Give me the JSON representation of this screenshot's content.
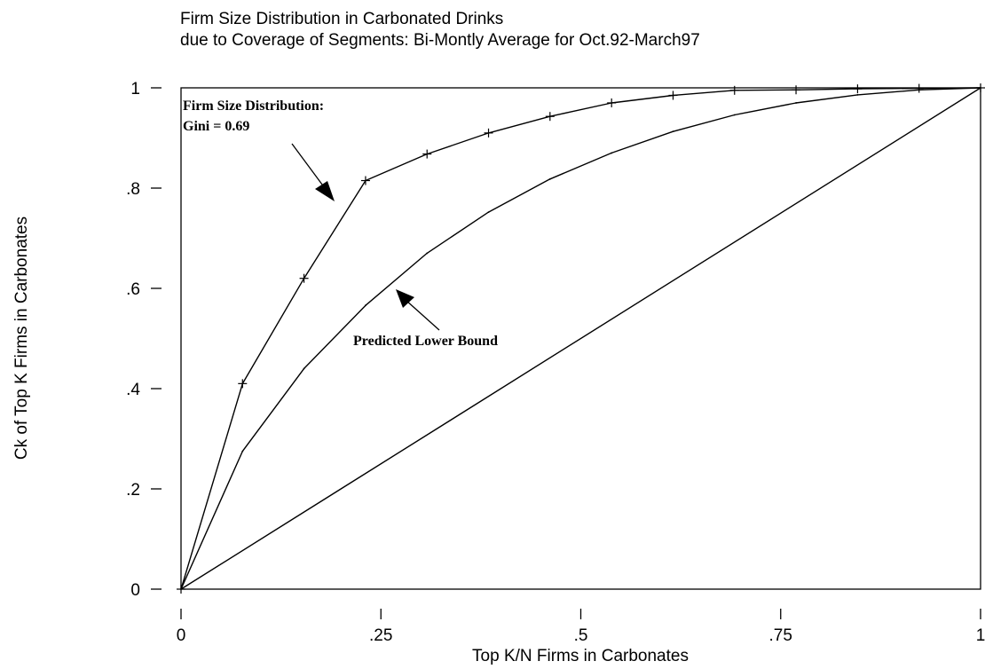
{
  "chart_data": {
    "type": "line",
    "title": "Firm Size Distribution in Carbonated Drinks",
    "subtitle": "due to Coverage of Segments: Bi-Montly Average for Oct.92-March97",
    "xlabel": "Top K/N Firms in Carbonates",
    "ylabel": "Ck of Top K Firms in Carbonates",
    "xlim": [
      0,
      1
    ],
    "ylim": [
      0,
      1
    ],
    "x_ticks": [
      {
        "value": 0,
        "label": "0"
      },
      {
        "value": 0.25,
        "label": ".25"
      },
      {
        "value": 0.5,
        "label": ".5"
      },
      {
        "value": 0.75,
        "label": ".75"
      },
      {
        "value": 1,
        "label": "1"
      }
    ],
    "y_ticks": [
      {
        "value": 0,
        "label": "0"
      },
      {
        "value": 0.2,
        "label": ".2"
      },
      {
        "value": 0.4,
        "label": ".4"
      },
      {
        "value": 0.6,
        "label": ".6"
      },
      {
        "value": 0.8,
        "label": ".8"
      },
      {
        "value": 1,
        "label": "1"
      }
    ],
    "grid": false,
    "series": [
      {
        "role": "actual",
        "marker": "plus",
        "color": "#000000",
        "x": [
          0,
          0.0769,
          0.1538,
          0.2308,
          0.3077,
          0.3846,
          0.4615,
          0.5385,
          0.6154,
          0.6923,
          0.7692,
          0.8462,
          0.9231,
          1.0
        ],
        "y": [
          0,
          0.41,
          0.62,
          0.815,
          0.868,
          0.91,
          0.943,
          0.97,
          0.985,
          0.995,
          0.996,
          0.998,
          0.999,
          1.0
        ]
      },
      {
        "role": "predicted-lower-bound",
        "marker": "none",
        "color": "#000000",
        "x": [
          0,
          0.0769,
          0.1538,
          0.2308,
          0.3077,
          0.3846,
          0.4615,
          0.5385,
          0.6154,
          0.6923,
          0.7692,
          0.8462,
          0.9231,
          1.0
        ],
        "y": [
          0,
          0.275,
          0.44,
          0.566,
          0.67,
          0.752,
          0.818,
          0.87,
          0.913,
          0.946,
          0.97,
          0.986,
          0.996,
          1.0
        ]
      },
      {
        "role": "equality-line",
        "marker": "none",
        "color": "#000000",
        "x": [
          0,
          1
        ],
        "y": [
          0,
          1
        ]
      }
    ],
    "annotations": [
      {
        "lines": [
          "Firm Size Distribution:",
          "Gini = 0.69"
        ],
        "points_to": "actual"
      },
      {
        "lines": [
          "Predicted Lower Bound"
        ],
        "points_to": "predicted-lower-bound"
      }
    ]
  }
}
